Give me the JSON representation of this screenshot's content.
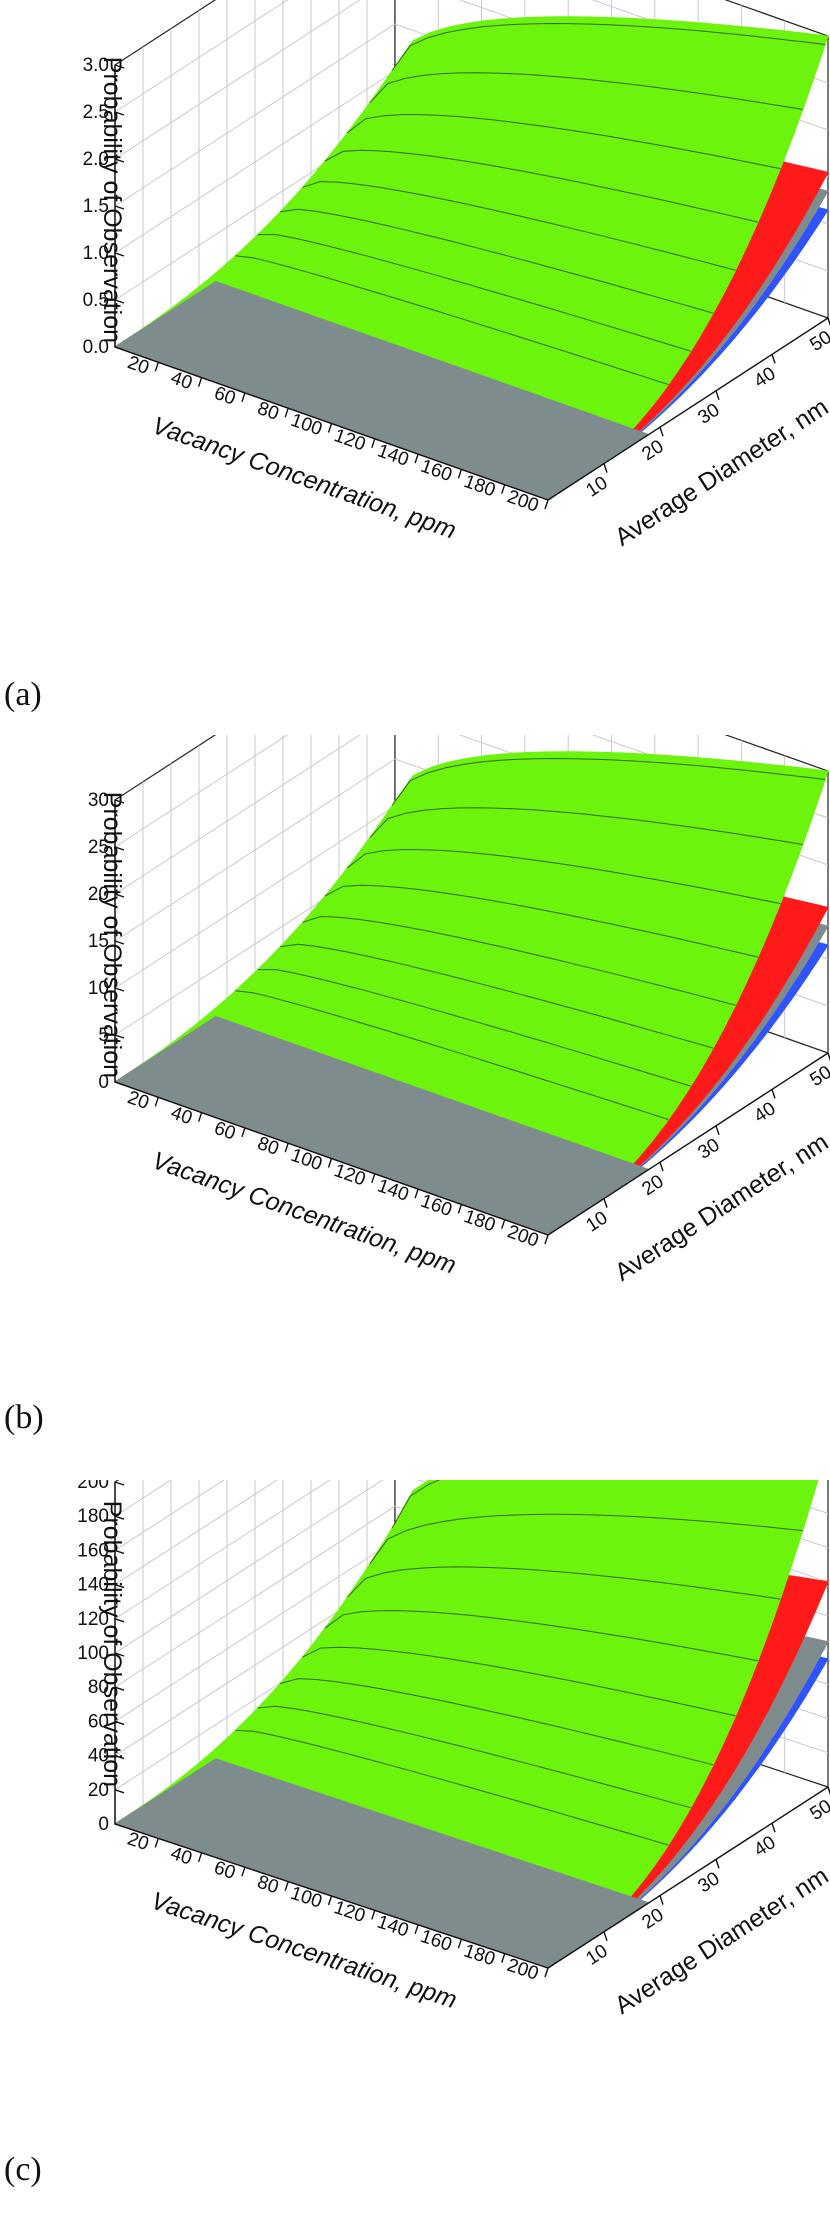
{
  "chart_data": [
    {
      "type": "surface3d",
      "panel_label": "(a)",
      "zlabel": "Probability of Observation",
      "xlabel": "Vacancy Concentration, ppm",
      "ylabel": "Average Diameter, nm",
      "z_ticks": [
        "0.0",
        "0.5",
        "1.0",
        "1.5",
        "2.0",
        "2.5",
        "3.0"
      ],
      "x_ticks": [
        "20",
        "40",
        "60",
        "80",
        "100",
        "120",
        "140",
        "160",
        "180",
        "200"
      ],
      "y_ticks": [
        "10",
        "20",
        "30",
        "40",
        "50"
      ],
      "zlim": [
        0,
        3.0
      ],
      "xlim": [
        0,
        200
      ],
      "ylim": [
        0,
        50
      ],
      "grid": true,
      "surfaces": [
        {
          "color": "#6cf40c",
          "z_max": 3.0
        },
        {
          "color": "#ff1a1a",
          "z_max": 1.55
        },
        {
          "color": "#7f8c8e",
          "z_max": 1.35
        },
        {
          "color": "#2f53ff",
          "z_max": 1.15
        }
      ]
    },
    {
      "type": "surface3d",
      "panel_label": "(b)",
      "zlabel": "Probability of Observation",
      "xlabel": "Vacancy Concentration, ppm",
      "ylabel": "Average Diameter, nm",
      "z_ticks": [
        "0",
        "5",
        "10",
        "15",
        "20",
        "25",
        "30"
      ],
      "x_ticks": [
        "20",
        "40",
        "60",
        "80",
        "100",
        "120",
        "140",
        "160",
        "180",
        "200"
      ],
      "y_ticks": [
        "10",
        "20",
        "30",
        "40",
        "50"
      ],
      "zlim": [
        0,
        30
      ],
      "xlim": [
        0,
        200
      ],
      "ylim": [
        0,
        50
      ],
      "grid": true,
      "surfaces": [
        {
          "color": "#6cf40c",
          "z_max": 30
        },
        {
          "color": "#ff1a1a",
          "z_max": 15.5
        },
        {
          "color": "#7f8c8e",
          "z_max": 13.5
        },
        {
          "color": "#2f53ff",
          "z_max": 11.5
        }
      ]
    },
    {
      "type": "surface3d",
      "panel_label": "(c)",
      "zlabel": "Probability of Observation",
      "xlabel": "Vacancy Concentration, ppm",
      "ylabel": "Average Diameter, nm",
      "z_ticks": [
        "0",
        "20",
        "40",
        "60",
        "80",
        "100",
        "120",
        "140",
        "160",
        "180",
        "200"
      ],
      "x_ticks": [
        "20",
        "40",
        "60",
        "80",
        "100",
        "120",
        "140",
        "160",
        "180",
        "200"
      ],
      "y_ticks": [
        "10",
        "20",
        "30",
        "40",
        "50"
      ],
      "zlim": [
        0,
        200
      ],
      "xlim": [
        0,
        200
      ],
      "ylim": [
        0,
        50
      ],
      "grid": true,
      "surfaces": [
        {
          "color": "#6cf40c",
          "z_max": 200
        },
        {
          "color": "#ff1a1a",
          "z_max": 120
        },
        {
          "color": "#7f8c8e",
          "z_max": 85
        },
        {
          "color": "#2f53ff",
          "z_max": 75
        }
      ]
    }
  ]
}
